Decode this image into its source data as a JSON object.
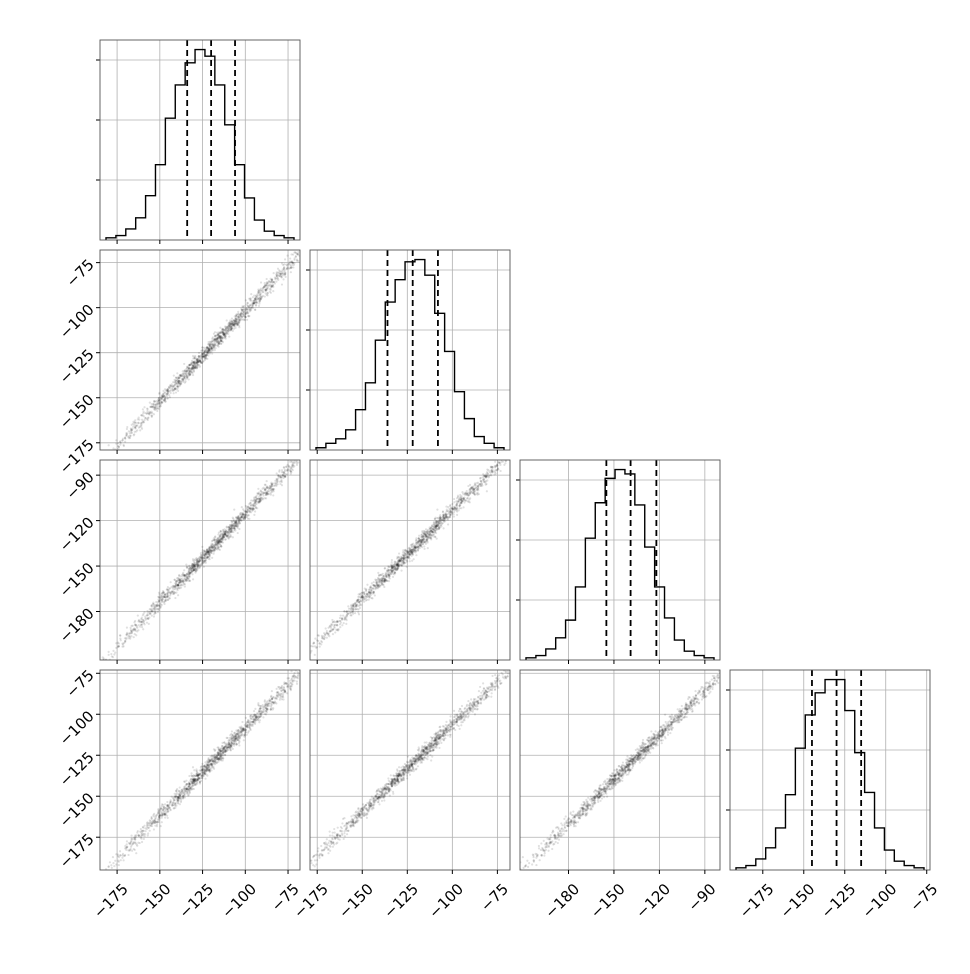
{
  "chart_data": {
    "type": "corner",
    "grid": true,
    "contour_levels": [
      0.5,
      0.9
    ],
    "quantile_lines": "dashed",
    "parameters": [
      {
        "range": [
          -185,
          -68
        ],
        "ticks": [
          -175,
          -150,
          -125,
          -100,
          -75
        ],
        "tick_labels": [
          "−175",
          "−150",
          "−125",
          "−100",
          "−75"
        ],
        "quantiles": [
          -134,
          -120,
          -106
        ],
        "hist_counts": [
          1,
          2,
          5,
          10,
          20,
          34,
          55,
          70,
          80,
          86,
          83,
          70,
          52,
          34,
          19,
          9,
          4,
          2,
          1
        ]
      },
      {
        "range": [
          -179,
          -68
        ],
        "ticks": [
          -175,
          -150,
          -125,
          -100,
          -75
        ],
        "tick_labels": [
          "−175",
          "−150",
          "−125",
          "−100",
          "−75"
        ],
        "quantiles": [
          -136,
          -122,
          -108
        ],
        "hist_counts": [
          1,
          3,
          5,
          9,
          18,
          30,
          49,
          66,
          76,
          84,
          85,
          78,
          61,
          44,
          26,
          14,
          6,
          3,
          1
        ]
      },
      {
        "range": [
          -212,
          -80
        ],
        "ticks": [
          -180,
          -150,
          -120,
          -90
        ],
        "tick_labels": [
          "−180",
          "−150",
          "−120",
          "−90"
        ],
        "quantiles": [
          -155,
          -139,
          -122
        ],
        "hist_counts": [
          1,
          2,
          5,
          10,
          18,
          33,
          55,
          71,
          82,
          86,
          84,
          70,
          51,
          33,
          19,
          9,
          4,
          2,
          1
        ]
      },
      {
        "range": [
          -195,
          -73
        ],
        "ticks": [
          -175,
          -150,
          -125,
          -100,
          -75
        ],
        "tick_labels": [
          "−175",
          "−150",
          "−125",
          "−100",
          "−75"
        ],
        "quantiles": [
          -145,
          -130,
          -115
        ],
        "hist_counts": [
          1,
          2,
          5,
          10,
          19,
          34,
          55,
          70,
          80,
          86,
          86,
          72,
          53,
          35,
          19,
          9,
          4,
          2,
          1
        ]
      }
    ]
  }
}
